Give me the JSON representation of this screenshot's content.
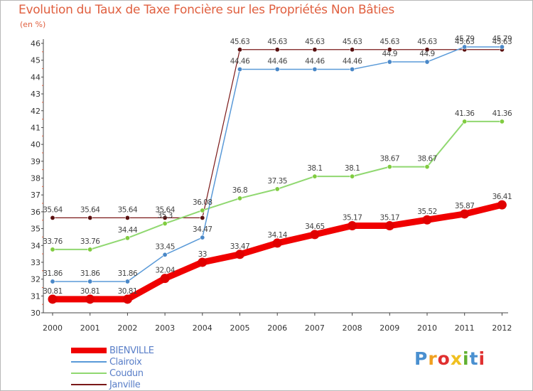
{
  "title": "Evolution du Taux de Taxe Foncière sur les Propriétés Non Bâties",
  "unit_label": "(en %)",
  "logo": {
    "text": "Proxiti",
    "letter_colors": [
      "#4a90d0",
      "#f0a020",
      "#e03030",
      "#f0c020",
      "#60b030",
      "#4a90d0",
      "#e03030"
    ]
  },
  "chart_data": {
    "type": "line",
    "title": "Evolution du Taux de Taxe Foncière sur les Propriétés Non Bâties",
    "ylabel": "(en %)",
    "xlabel": "",
    "ylim": [
      30,
      46
    ],
    "yticks": [
      "30",
      "31",
      "32",
      "33",
      "34",
      "35",
      "36",
      "37",
      "38",
      "39",
      "40",
      "41",
      "42",
      "43",
      "44",
      "45",
      "46"
    ],
    "categories": [
      "2000",
      "2001",
      "2002",
      "2003",
      "2004",
      "2005",
      "2006",
      "2007",
      "2008",
      "2009",
      "2010",
      "2011",
      "2012"
    ],
    "grid": false,
    "legend_position": "bottom-left",
    "series": [
      {
        "name": "Janville",
        "color": "#7a1818",
        "marker": "#5a1010",
        "width": 1.2,
        "values": [
          35.64,
          35.64,
          35.64,
          35.64,
          35.64,
          45.63,
          45.63,
          45.63,
          45.63,
          45.63,
          45.63,
          45.63,
          45.63
        ],
        "labels": [
          "35.64",
          "35.64",
          "35.64",
          "35.64",
          "",
          "45.63",
          "45.63",
          "45.63",
          "45.63",
          "45.63",
          "45.63",
          "45.63",
          "45.63"
        ]
      },
      {
        "name": "Coudun",
        "color": "#90d870",
        "marker": "#80cc40",
        "width": 2,
        "values": [
          33.76,
          33.76,
          34.44,
          35.3,
          36.08,
          36.8,
          37.35,
          38.1,
          38.1,
          38.67,
          38.67,
          41.36,
          41.36
        ],
        "labels": [
          "33.76",
          "33.76",
          "34.44",
          "35.3",
          "36.08",
          "36.8",
          "37.35",
          "38.1",
          "38.1",
          "38.67",
          "38.67",
          "41.36",
          "41.36"
        ]
      },
      {
        "name": "Clairoix",
        "color": "#5a9ad8",
        "marker": "#4a88c8",
        "width": 1.5,
        "values": [
          31.86,
          31.86,
          31.86,
          33.45,
          34.47,
          44.46,
          44.46,
          44.46,
          44.46,
          44.9,
          44.9,
          45.79,
          45.79
        ],
        "labels": [
          "31.86",
          "31.86",
          "31.86",
          "33.45",
          "34.47",
          "44.46",
          "44.46",
          "44.46",
          "44.46",
          "44.9",
          "44.9",
          "45.79",
          "45.79"
        ]
      },
      {
        "name": "BIENVILLE",
        "color": "#f00000",
        "marker": "#e00000",
        "width": 9,
        "values": [
          30.81,
          30.81,
          30.81,
          32.04,
          33,
          33.47,
          34.14,
          34.65,
          35.17,
          35.17,
          35.52,
          35.87,
          36.41
        ],
        "labels": [
          "30.81",
          "30.81",
          "30.81",
          "32.04",
          "33",
          "33.47",
          "34.14",
          "34.65",
          "35.17",
          "35.17",
          "35.52",
          "35.87",
          "36.41"
        ]
      }
    ]
  }
}
